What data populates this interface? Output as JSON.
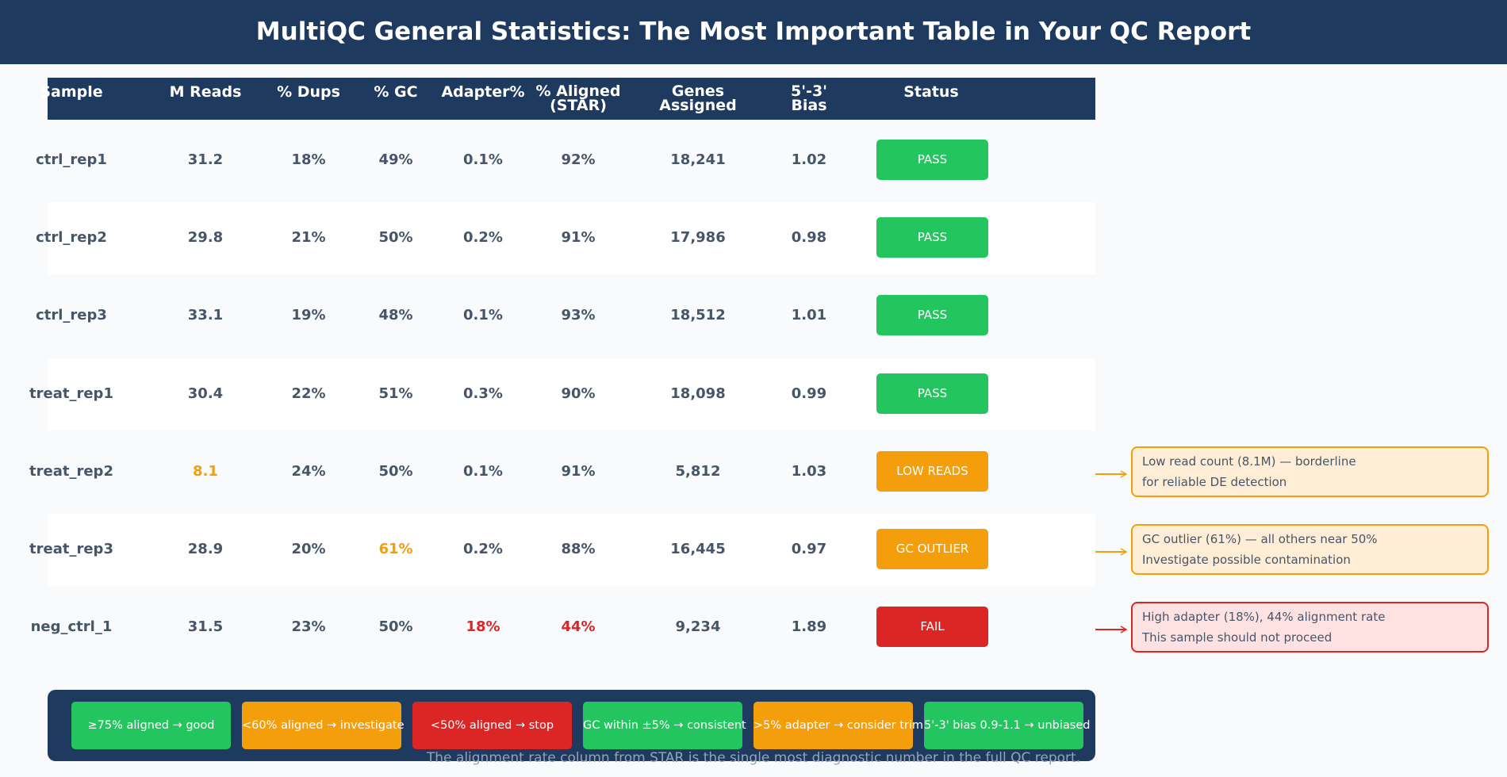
{
  "title": "MultiQC General Statistics: The Most Important Table in Your QC Report",
  "colors": {
    "navy": "#1e3a5f",
    "pass": "#22c55e",
    "warn": "#f59e0b",
    "fail": "#dc2626",
    "text": "#475569"
  },
  "columns": [
    "Sample",
    "M Reads",
    "% Dups",
    "% GC",
    "Adapter%",
    "% Aligned\n(STAR)",
    "Genes\nAssigned",
    "5'-3'\nBias",
    "Status"
  ],
  "rows": [
    {
      "sample": "ctrl_rep1",
      "reads": "31.2",
      "dups": "18%",
      "gc": "49%",
      "adapter": "0.1%",
      "aligned": "92%",
      "genes": "18,241",
      "bias": "1.02",
      "status": "PASS",
      "level": "pass"
    },
    {
      "sample": "ctrl_rep2",
      "reads": "29.8",
      "dups": "21%",
      "gc": "50%",
      "adapter": "0.2%",
      "aligned": "91%",
      "genes": "17,986",
      "bias": "0.98",
      "status": "PASS",
      "level": "pass"
    },
    {
      "sample": "ctrl_rep3",
      "reads": "33.1",
      "dups": "19%",
      "gc": "48%",
      "adapter": "0.1%",
      "aligned": "93%",
      "genes": "18,512",
      "bias": "1.01",
      "status": "PASS",
      "level": "pass"
    },
    {
      "sample": "treat_rep1",
      "reads": "30.4",
      "dups": "22%",
      "gc": "51%",
      "adapter": "0.3%",
      "aligned": "90%",
      "genes": "18,098",
      "bias": "0.99",
      "status": "PASS",
      "level": "pass"
    },
    {
      "sample": "treat_rep2",
      "reads": "8.1",
      "dups": "24%",
      "gc": "50%",
      "adapter": "0.1%",
      "aligned": "91%",
      "genes": "5,812",
      "bias": "1.03",
      "status": "LOW READS",
      "level": "warn",
      "highlight": {
        "reads": "warn"
      },
      "note": [
        "Low read count (8.1M) — borderline",
        "for reliable DE detection"
      ]
    },
    {
      "sample": "treat_rep3",
      "reads": "28.9",
      "dups": "20%",
      "gc": "61%",
      "adapter": "0.2%",
      "aligned": "88%",
      "genes": "16,445",
      "bias": "0.97",
      "status": "GC OUTLIER",
      "level": "warn",
      "highlight": {
        "gc": "warn"
      },
      "note": [
        "GC outlier (61%) — all others near 50%",
        "Investigate possible contamination"
      ]
    },
    {
      "sample": "neg_ctrl_1",
      "reads": "31.5",
      "dups": "23%",
      "gc": "50%",
      "adapter": "18%",
      "aligned": "44%",
      "genes": "9,234",
      "bias": "1.89",
      "status": "FAIL",
      "level": "fail",
      "highlight": {
        "adapter": "fail",
        "aligned": "fail"
      },
      "note": [
        "High adapter (18%), 44% alignment rate",
        "This sample should not proceed"
      ]
    }
  ],
  "legend": [
    {
      "label": "≥75% aligned → good",
      "level": "pass"
    },
    {
      "label": "<60% aligned → investigate",
      "level": "warn"
    },
    {
      "label": "<50% aligned → stop",
      "level": "fail"
    },
    {
      "label": "GC within ±5% → consistent",
      "level": "pass"
    },
    {
      "label": ">5% adapter → consider trim",
      "level": "warn"
    },
    {
      "label": "5'-3' bias 0.9-1.1 → unbiased",
      "level": "pass"
    }
  ],
  "footer": "The alignment rate column from STAR is the single most diagnostic number in the full QC report."
}
